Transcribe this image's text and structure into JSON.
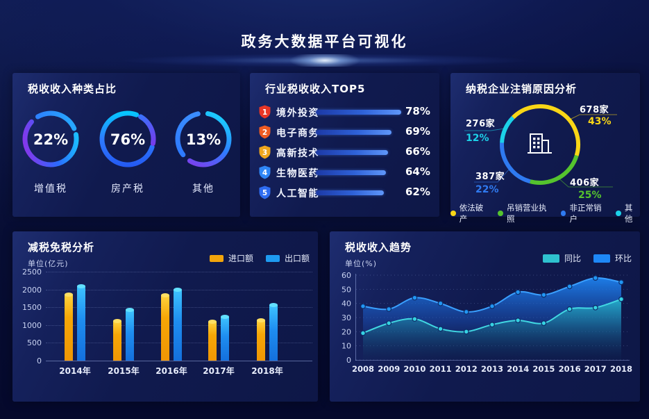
{
  "page": {
    "title": "政务大数据平台可视化"
  },
  "panels": {
    "tax_type": {
      "title": "税收收入种类占比"
    },
    "industry_top5": {
      "title": "行业税收收入TOP5"
    },
    "deregistration": {
      "title": "纳税企业注销原因分析"
    },
    "tax_reduction": {
      "title": "减税免税分析",
      "unit": "单位(亿元)"
    },
    "tax_trend": {
      "title": "税收收入趋势",
      "unit": "单位(%)"
    }
  },
  "colors": {
    "accent_cyan": "#1fdcf2",
    "panel_bg": "#101a4e",
    "bar_import": "#f2a50c",
    "bar_export": "#1e9bf0",
    "trend_tongbi": "#2fc2cf",
    "trend_huanbi": "#1e88f7"
  },
  "chart_data": [
    {
      "id": "tax_type_rings",
      "type": "pie",
      "variant": "progress-rings",
      "title": "税收收入种类占比",
      "items": [
        {
          "label": "增值税",
          "value": 22,
          "display": "22%"
        },
        {
          "label": "房产税",
          "value": 76,
          "display": "76%"
        },
        {
          "label": "其他",
          "value": 13,
          "display": "13%"
        }
      ]
    },
    {
      "id": "industry_top5",
      "type": "bar",
      "orientation": "horizontal",
      "title": "行业税收收入TOP5",
      "categories": [
        "境外投资",
        "电子商务",
        "高新技术",
        "生物医药",
        "人工智能"
      ],
      "values": [
        78,
        69,
        66,
        64,
        62
      ],
      "value_labels": [
        "78%",
        "69%",
        "66%",
        "64%",
        "62%"
      ],
      "ranks": [
        "1",
        "2",
        "3",
        "4",
        "5"
      ],
      "rank_colors": [
        "#e73626",
        "#ef5b23",
        "#efa51e",
        "#2f86f6",
        "#2e6cf0"
      ],
      "bar_max": 78
    },
    {
      "id": "deregistration_donut",
      "type": "pie",
      "title": "纳税企业注销原因分析",
      "segments": [
        {
          "label": "依法破产",
          "count_label": "678家",
          "pct": 43,
          "pct_label": "43%",
          "color": "#f9d616"
        },
        {
          "label": "吊销营业执照",
          "count_label": "406家",
          "pct": 25,
          "pct_label": "25%",
          "color": "#55c32e"
        },
        {
          "label": "非正常销户",
          "count_label": "387家",
          "pct": 22,
          "pct_label": "22%",
          "color": "#2f7af0"
        },
        {
          "label": "其他",
          "count_label": "276家",
          "pct": 12,
          "pct_label": "12%",
          "color": "#1cd1e8"
        }
      ],
      "legend_position": "bottom"
    },
    {
      "id": "tax_reduction_bars",
      "type": "bar",
      "title": "减税免税分析",
      "ylabel": "单位(亿元)",
      "categories": [
        "2014年",
        "2015年",
        "2016年",
        "2017年",
        "2018年"
      ],
      "series": [
        {
          "name": "进口额",
          "color": "#f2a50c",
          "values": [
            1850,
            1120,
            1830,
            1100,
            1140
          ]
        },
        {
          "name": "出口额",
          "color": "#1e9bf0",
          "values": [
            2090,
            1430,
            2000,
            1240,
            1560
          ]
        }
      ],
      "ylim": [
        0,
        2500
      ],
      "yticks": [
        0,
        500,
        1000,
        1500,
        2000,
        2500
      ],
      "grid": "dotted",
      "legend_position": "top-right"
    },
    {
      "id": "tax_trend_area",
      "type": "area",
      "title": "税收收入趋势",
      "ylabel": "单位(%)",
      "x": [
        "2008",
        "2009",
        "2010",
        "2011",
        "2012",
        "2013",
        "2014",
        "2015",
        "2016",
        "2017",
        "2018"
      ],
      "series": [
        {
          "name": "同比",
          "color": "#2fc2cf",
          "values": [
            19,
            26,
            29,
            22,
            20,
            25,
            28,
            26,
            36,
            37,
            43
          ]
        },
        {
          "name": "环比",
          "color": "#1e88f7",
          "values": [
            38,
            36,
            44,
            40,
            34,
            38,
            48,
            46,
            52,
            58,
            55
          ]
        }
      ],
      "ylim": [
        0,
        60
      ],
      "yticks": [
        0,
        10,
        20,
        30,
        40,
        50,
        60
      ],
      "grid": "dotted",
      "legend_position": "top-right"
    }
  ]
}
